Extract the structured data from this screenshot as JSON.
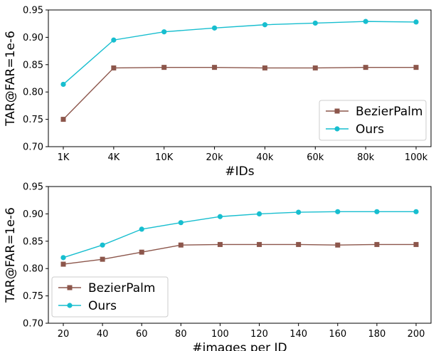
{
  "chart_data": [
    {
      "type": "line",
      "categories": [
        "1K",
        "4K",
        "10K",
        "20k",
        "40k",
        "60k",
        "80k",
        "100k"
      ],
      "xlabel": "#IDs",
      "ylabel": "TAR@FAR=1e-6",
      "ylim": [
        0.7,
        0.95
      ],
      "yticks": [
        "0.70",
        "0.75",
        "0.80",
        "0.85",
        "0.90",
        "0.95"
      ],
      "grid": false,
      "legend_position": "lower-right",
      "series": [
        {
          "name": "BezierPalm",
          "color": "#8c564b",
          "marker": "square",
          "values": [
            0.75,
            0.844,
            0.845,
            0.845,
            0.844,
            0.844,
            0.845,
            0.845
          ]
        },
        {
          "name": "Ours",
          "color": "#17becf",
          "marker": "circle",
          "values": [
            0.814,
            0.895,
            0.91,
            0.917,
            0.923,
            0.926,
            0.929,
            0.928
          ]
        }
      ]
    },
    {
      "type": "line",
      "categories": [
        "20",
        "40",
        "60",
        "80",
        "100",
        "120",
        "140",
        "160",
        "180",
        "200"
      ],
      "xlabel": "#images per ID",
      "ylabel": "TAR@FAR=1e-6",
      "ylim": [
        0.7,
        0.95
      ],
      "yticks": [
        "0.70",
        "0.75",
        "0.80",
        "0.85",
        "0.90",
        "0.95"
      ],
      "grid": false,
      "legend_position": "lower-left",
      "series": [
        {
          "name": "BezierPalm",
          "color": "#8c564b",
          "marker": "square",
          "values": [
            0.808,
            0.817,
            0.83,
            0.843,
            0.844,
            0.844,
            0.844,
            0.843,
            0.844,
            0.844
          ]
        },
        {
          "name": "Ours",
          "color": "#17becf",
          "marker": "circle",
          "values": [
            0.82,
            0.843,
            0.872,
            0.884,
            0.895,
            0.9,
            0.903,
            0.904,
            0.904,
            0.904
          ]
        }
      ]
    }
  ]
}
